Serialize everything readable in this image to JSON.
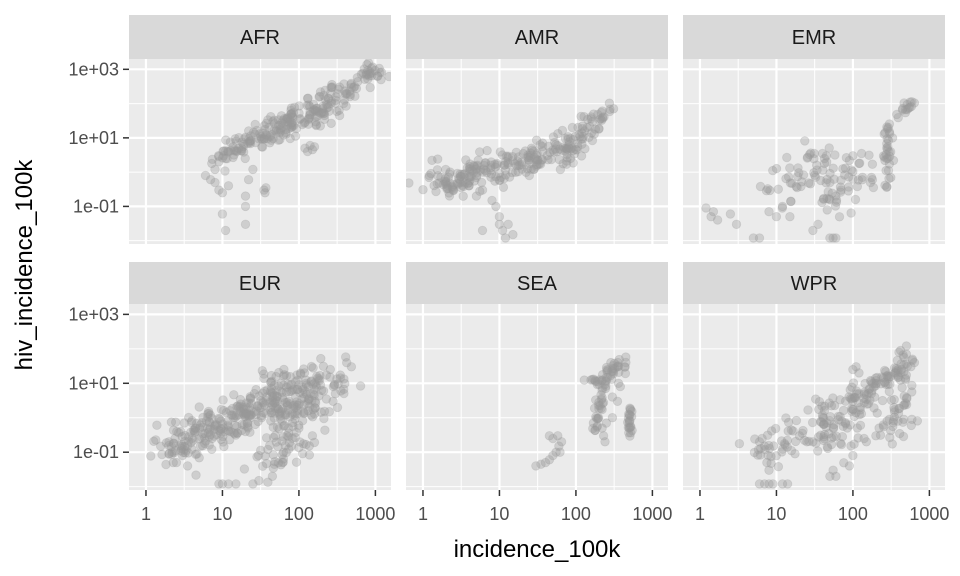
{
  "chart_data": {
    "type": "scatter",
    "facet_by": "region",
    "layout": {
      "rows": 2,
      "cols": 3
    },
    "xlabel": "incidence_100k",
    "ylabel": "hiv_incidence_100k",
    "x_scale": "log10",
    "y_scale": "log10",
    "xlim": [
      0.6,
      1600
    ],
    "ylim": [
      0.008,
      2000
    ],
    "x_ticks": [
      1,
      10,
      100,
      1000
    ],
    "x_tick_labels": [
      "1",
      "10",
      "100",
      "1000"
    ],
    "y_ticks": [
      0.1,
      10,
      1000
    ],
    "y_tick_labels": [
      "1e-01",
      "1e+01",
      "1e+03"
    ],
    "grid": true,
    "point_color": "#999999",
    "point_alpha": 0.35,
    "panel_background": "#ebebeb",
    "strip_background": "#d9d9d9",
    "panels": [
      {
        "name": "AFR",
        "segments": [
          {
            "x": [
              8,
              1200
            ],
            "y": [
              2,
              1000
            ],
            "n": 190,
            "spread": 0.16
          },
          {
            "x": [
              20,
              300
            ],
            "y": [
              5,
              80
            ],
            "n": 60,
            "spread": 0.18
          }
        ],
        "points": [
          [
            6,
            0.8
          ],
          [
            7,
            0.6
          ],
          [
            8,
            1.2
          ],
          [
            9,
            2
          ],
          [
            8,
            0.5
          ],
          [
            9,
            0.3
          ],
          [
            10,
            0.25
          ],
          [
            11,
            2.5
          ],
          [
            12,
            0.4
          ],
          [
            10,
            0.06
          ],
          [
            11,
            0.02
          ],
          [
            20,
            0.2
          ],
          [
            20,
            0.1
          ],
          [
            20,
            0.03
          ],
          [
            22,
            0.6
          ],
          [
            25,
            1.2
          ],
          [
            35,
            0.3
          ],
          [
            37,
            0.35
          ],
          [
            36,
            0.25
          ],
          [
            120,
            5
          ],
          [
            130,
            4
          ],
          [
            140,
            6
          ],
          [
            150,
            4.5
          ],
          [
            160,
            5.5
          ]
        ]
      },
      {
        "name": "AMR",
        "segments": [
          {
            "x": [
              1.5,
              100
            ],
            "y": [
              0.4,
              6
            ],
            "n": 220,
            "spread": 0.22
          },
          {
            "x": [
              100,
              280
            ],
            "y": [
              6,
              80
            ],
            "n": 40,
            "spread": 0.15
          }
        ],
        "points": [
          [
            1.2,
            0.7
          ],
          [
            2,
            0.5
          ],
          [
            2.5,
            0.3
          ],
          [
            3,
            0.6
          ],
          [
            3.5,
            0.9
          ],
          [
            4,
            0.4
          ],
          [
            5,
            0.2
          ],
          [
            6,
            0.3
          ],
          [
            8,
            0.15
          ],
          [
            9,
            0.1
          ],
          [
            10,
            0.05
          ],
          [
            10,
            0.03
          ],
          [
            12,
            0.012
          ],
          [
            11,
            0.02
          ],
          [
            13,
            0.03
          ],
          [
            15,
            0.015
          ],
          [
            6,
            0.02
          ],
          [
            4,
            0.4
          ],
          [
            5,
            0.7
          ],
          [
            120,
            14
          ],
          [
            130,
            16
          ],
          [
            140,
            20
          ],
          [
            160,
            14
          ],
          [
            200,
            18
          ],
          [
            90,
            20
          ]
        ]
      },
      {
        "name": "EMR",
        "segments": [
          {
            "x": [
              10,
              50
            ],
            "y": [
              0.3,
              3
            ],
            "n": 45,
            "spread": 0.3
          },
          {
            "x": [
              40,
              120
            ],
            "y": [
              0.08,
              2
            ],
            "n": 40,
            "spread": 0.3
          },
          {
            "x": [
              280,
              290
            ],
            "y": [
              0.1,
              30
            ],
            "n": 30,
            "spread": 0.05
          },
          {
            "x": [
              380,
              620
            ],
            "y": [
              50,
              90
            ],
            "n": 15,
            "spread": 0.08
          }
        ],
        "points": [
          [
            1.2,
            0.09
          ],
          [
            1.4,
            0.05
          ],
          [
            1.5,
            0.07
          ],
          [
            1.7,
            0.04
          ],
          [
            2.5,
            0.06
          ],
          [
            3,
            0.03
          ],
          [
            5,
            0.012
          ],
          [
            6,
            0.012
          ],
          [
            8,
            0.07
          ],
          [
            10,
            0.05
          ],
          [
            12,
            0.1
          ],
          [
            15,
            0.05
          ],
          [
            30,
            0.02
          ],
          [
            35,
            0.03
          ],
          [
            50,
            0.012
          ],
          [
            55,
            0.012
          ],
          [
            60,
            0.012
          ],
          [
            60,
            0.2
          ],
          [
            70,
            0.3
          ],
          [
            50,
            0.5
          ],
          [
            80,
            1.3
          ],
          [
            90,
            2.2
          ],
          [
            100,
            3
          ],
          [
            120,
            1.8
          ],
          [
            130,
            3.5
          ],
          [
            170,
            0.5
          ],
          [
            175,
            0.7
          ],
          [
            180,
            0.6
          ],
          [
            290,
            20
          ],
          [
            300,
            15
          ],
          [
            330,
            10
          ],
          [
            40,
            3.5
          ],
          [
            45,
            3
          ]
        ]
      },
      {
        "name": "EUR",
        "segments": [
          {
            "x": [
              2,
              40
            ],
            "y": [
              0.1,
              3
            ],
            "n": 200,
            "spread": 0.3
          },
          {
            "x": [
              25,
              80
            ],
            "y": [
              1,
              15
            ],
            "n": 70,
            "spread": 0.25
          },
          {
            "x": [
              40,
              120
            ],
            "y": [
              0.05,
              1
            ],
            "n": 60,
            "spread": 0.3
          },
          {
            "x": [
              60,
              300
            ],
            "y": [
              1,
              20
            ],
            "n": 120,
            "spread": 0.28
          }
        ],
        "points": [
          [
            2,
            0.2
          ],
          [
            2.2,
            0.1
          ],
          [
            2.5,
            0.05
          ],
          [
            3,
            0.08
          ],
          [
            3.5,
            0.04
          ],
          [
            9,
            0.012
          ],
          [
            10,
            0.012
          ],
          [
            12,
            0.012
          ],
          [
            15,
            0.012
          ],
          [
            25,
            0.012
          ],
          [
            30,
            0.015
          ],
          [
            45,
            0.02
          ],
          [
            70,
            0.3
          ],
          [
            80,
            0.15
          ],
          [
            100,
            0.5
          ],
          [
            150,
            0.3
          ],
          [
            280,
            3
          ],
          [
            300,
            5
          ],
          [
            320,
            2
          ],
          [
            250,
            1.5
          ]
        ]
      },
      {
        "name": "SEA",
        "segments": [
          {
            "x": [
              170,
              400
            ],
            "y": [
              10,
              40
            ],
            "n": 40,
            "spread": 0.1
          },
          {
            "x": [
              180,
              230
            ],
            "y": [
              0.4,
              10
            ],
            "n": 30,
            "spread": 0.05
          },
          {
            "x": [
              500,
              510
            ],
            "y": [
              0.2,
              2
            ],
            "n": 20,
            "spread": 0.03
          }
        ],
        "points": [
          [
            30,
            0.04
          ],
          [
            35,
            0.045
          ],
          [
            40,
            0.05
          ],
          [
            45,
            0.06
          ],
          [
            50,
            0.08
          ],
          [
            55,
            0.1
          ],
          [
            60,
            0.15
          ],
          [
            62,
            0.1
          ],
          [
            58,
            0.3
          ],
          [
            65,
            0.2
          ],
          [
            45,
            0.3
          ],
          [
            50,
            0.25
          ],
          [
            230,
            0.3
          ],
          [
            240,
            0.2
          ],
          [
            220,
            0.5
          ],
          [
            250,
            0.7
          ],
          [
            300,
            1
          ],
          [
            300,
            4
          ],
          [
            350,
            3
          ],
          [
            360,
            10
          ],
          [
            380,
            8
          ],
          [
            440,
            30
          ],
          [
            450,
            40
          ],
          [
            500,
            0.8
          ],
          [
            500,
            1.2
          ]
        ]
      },
      {
        "name": "WPR",
        "segments": [
          {
            "x": [
              6,
              60
            ],
            "y": [
              0.08,
              2
            ],
            "n": 60,
            "spread": 0.25
          },
          {
            "x": [
              50,
              150
            ],
            "y": [
              0.15,
              5
            ],
            "n": 70,
            "spread": 0.3
          },
          {
            "x": [
              100,
              250
            ],
            "y": [
              3,
              15
            ],
            "n": 35,
            "spread": 0.15
          },
          {
            "x": [
              300,
              500
            ],
            "y": [
              10,
              60
            ],
            "n": 35,
            "spread": 0.15
          },
          {
            "x": [
              330,
              520
            ],
            "y": [
              0.3,
              10
            ],
            "n": 35,
            "spread": 0.15
          }
        ],
        "points": [
          [
            6,
            0.012
          ],
          [
            7,
            0.012
          ],
          [
            8,
            0.012
          ],
          [
            9,
            0.012
          ],
          [
            12,
            0.012
          ],
          [
            14,
            0.012
          ],
          [
            6,
            0.2
          ],
          [
            6.5,
            0.25
          ],
          [
            7,
            0.15
          ],
          [
            7.5,
            0.05
          ],
          [
            8,
            0.03
          ],
          [
            20,
            0.3
          ],
          [
            25,
            0.2
          ],
          [
            30,
            0.2
          ],
          [
            40,
            1.2
          ],
          [
            50,
            0.02
          ],
          [
            55,
            0.03
          ],
          [
            60,
            0.02
          ],
          [
            90,
            0.04
          ],
          [
            100,
            0.08
          ],
          [
            140,
            0.25
          ],
          [
            150,
            0.2
          ],
          [
            200,
            0.3
          ],
          [
            220,
            0.5
          ],
          [
            280,
            0.8
          ],
          [
            300,
            0.9
          ],
          [
            100,
            25
          ],
          [
            110,
            30
          ],
          [
            120,
            20
          ],
          [
            400,
            80
          ],
          [
            420,
            90
          ],
          [
            500,
            70
          ],
          [
            600,
            50
          ],
          [
            580,
            0.6
          ],
          [
            590,
            0.9
          ]
        ]
      }
    ]
  }
}
